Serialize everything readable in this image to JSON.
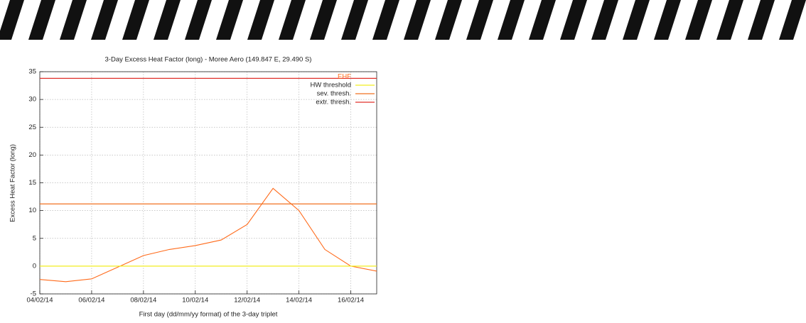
{
  "chart_data": {
    "type": "line",
    "title": "3-Day Excess Heat Factor (long) - Moree Aero (149.847 E, 29.490 S)",
    "x_label": "First day (dd/mm/yy format) of the 3-day triplet",
    "y_label": "Excess Heat Factor (long)",
    "x": [
      "04/02/14",
      "05/02/14",
      "06/02/14",
      "07/02/14",
      "08/02/14",
      "09/02/14",
      "10/02/14",
      "11/02/14",
      "12/02/14",
      "13/02/14",
      "14/02/14",
      "15/02/14",
      "16/02/14",
      "17/02/14"
    ],
    "series": [
      {
        "name": "EHF",
        "color": "#ff6a1a",
        "values": [
          -2.4,
          -2.8,
          -2.3,
          -0.2,
          1.9,
          3.0,
          3.7,
          4.7,
          7.5,
          14.0,
          10.0,
          3.0,
          0.0,
          -0.9
        ]
      },
      {
        "name": "HW threshold",
        "color": "#f2ee20",
        "value": 0
      },
      {
        "name": "sev. thresh.",
        "color": "#f07020",
        "value": 11.2
      },
      {
        "name": "extr. thresh.",
        "color": "#e0302a",
        "value": 33.8
      }
    ],
    "xlim": [
      "04/02/14",
      "17/02/14"
    ],
    "xticks": [
      "04/02/14",
      "06/02/14",
      "08/02/14",
      "10/02/14",
      "12/02/14",
      "14/02/14",
      "16/02/14"
    ],
    "ylim": [
      -5,
      35
    ],
    "yticks": [
      -5,
      0,
      5,
      10,
      15,
      20,
      25,
      30,
      35
    ],
    "grid": true
  }
}
